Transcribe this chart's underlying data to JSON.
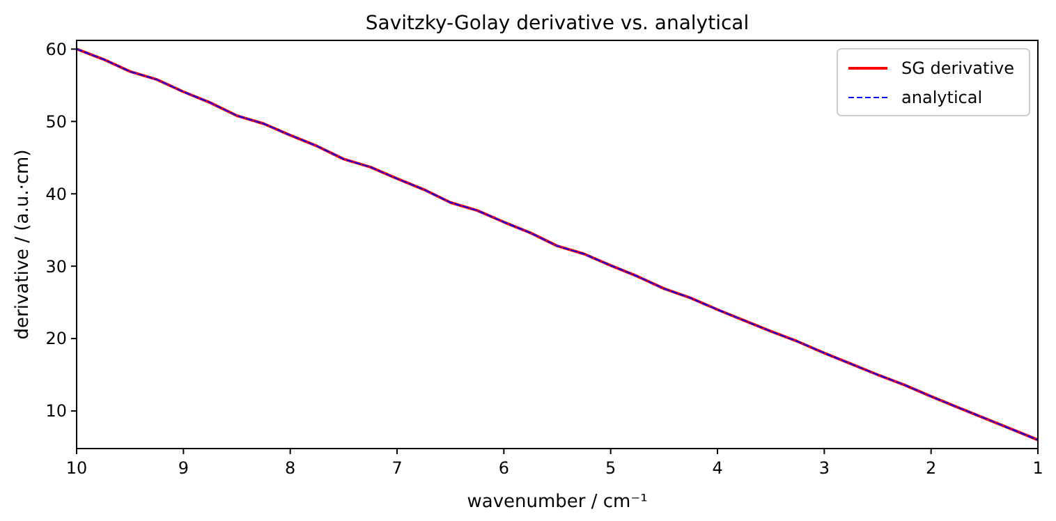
{
  "chart_data": {
    "type": "line",
    "title": "Savitzky-Golay derivative vs. analytical",
    "xlabel": "wavenumber / cm⁻¹",
    "ylabel": "derivative / (a.u.·cm)",
    "x": [
      10,
      9.75,
      9.5,
      9.25,
      9,
      8.75,
      8.5,
      8.25,
      8,
      7.75,
      7.5,
      7.25,
      7,
      6.75,
      6.5,
      6.25,
      6,
      5.75,
      5.5,
      5.25,
      5,
      4.75,
      4.5,
      4.25,
      4,
      3.75,
      3.5,
      3.25,
      3,
      2.75,
      2.5,
      2.25,
      2,
      1.75,
      1.5,
      1.25,
      1
    ],
    "xlim": [
      10,
      1
    ],
    "xticks": [
      10,
      9,
      8,
      7,
      6,
      5,
      4,
      3,
      2,
      1
    ],
    "ylim": [
      4.8,
      61.2
    ],
    "yticks": [
      10,
      20,
      30,
      40,
      50,
      60
    ],
    "series": [
      {
        "name": "SG derivative",
        "color": "#ff0000",
        "line_style": "solid",
        "values": [
          60,
          58.6,
          56.9,
          55.8,
          54.1,
          52.6,
          50.8,
          49.7,
          48.1,
          46.6,
          44.8,
          43.7,
          42.1,
          40.6,
          38.8,
          37.7,
          36.1,
          34.6,
          32.8,
          31.7,
          30.1,
          28.6,
          26.9,
          25.6,
          24,
          22.5,
          21,
          19.6,
          18,
          16.5,
          15,
          13.6,
          12,
          10.5,
          9,
          7.5,
          6
        ]
      },
      {
        "name": "analytical",
        "color": "#0000ff",
        "line_style": "dashed",
        "values": [
          60,
          58.6,
          56.9,
          55.8,
          54.1,
          52.6,
          50.8,
          49.7,
          48.1,
          46.6,
          44.8,
          43.7,
          42.1,
          40.6,
          38.8,
          37.7,
          36.1,
          34.6,
          32.8,
          31.7,
          30.1,
          28.6,
          26.9,
          25.6,
          24,
          22.5,
          21,
          19.6,
          18,
          16.5,
          15,
          13.6,
          12,
          10.5,
          9,
          7.5,
          6
        ]
      }
    ],
    "legend": "top right",
    "grid": false
  }
}
